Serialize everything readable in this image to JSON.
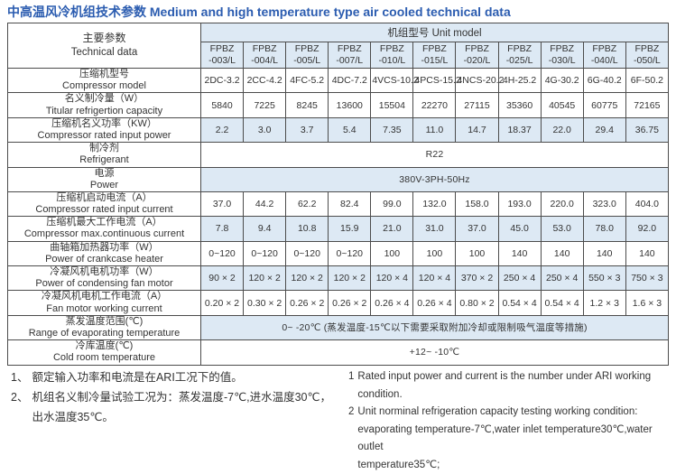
{
  "page_title": "中高温风冷机组技术参数 Medium and high temperature type air cooled technical data",
  "colors": {
    "title_blue": "#2b5cb0",
    "row_shade": "#dde9f4",
    "border": "#4c4c4c",
    "text": "#333333"
  },
  "table": {
    "corner": {
      "zh": "主要参数",
      "en": "Technical data"
    },
    "unit_model_label": "机组型号  Unit model",
    "models": [
      {
        "line1": "FPBZ",
        "line2": "-003/L"
      },
      {
        "line1": "FPBZ",
        "line2": "-004/L"
      },
      {
        "line1": "FPBZ",
        "line2": "-005/L"
      },
      {
        "line1": "FPBZ",
        "line2": "-007/L"
      },
      {
        "line1": "FPBZ",
        "line2": "-010/L"
      },
      {
        "line1": "FPBZ",
        "line2": "-015/L"
      },
      {
        "line1": "FPBZ",
        "line2": "-020/L"
      },
      {
        "line1": "FPBZ",
        "line2": "-025/L"
      },
      {
        "line1": "FPBZ",
        "line2": "-030/L"
      },
      {
        "line1": "FPBZ",
        "line2": "-040/L"
      },
      {
        "line1": "FPBZ",
        "line2": "-050/L"
      }
    ],
    "rows": [
      {
        "zh": "压缩机型号",
        "en": "Compressor model",
        "shaded": false,
        "values": [
          "2DC-3.2",
          "2CC-4.2",
          "4FC-5.2",
          "4DC-7.2",
          "4VCS-10.2",
          "4PCS-15.2",
          "4NCS-20.2",
          "4H-25.2",
          "4G-30.2",
          "6G-40.2",
          "6F-50.2"
        ]
      },
      {
        "zh": "名义制冷量（W）",
        "en": "Titular refrigertion capacity",
        "shaded": false,
        "values": [
          "5840",
          "7225",
          "8245",
          "13600",
          "15504",
          "22270",
          "27115",
          "35360",
          "40545",
          "60775",
          "72165"
        ]
      },
      {
        "zh": "压缩机名义功率（KW）",
        "en": "Compressor rated input power",
        "shaded": true,
        "values": [
          "2.2",
          "3.0",
          "3.7",
          "5.4",
          "7.35",
          "11.0",
          "14.7",
          "18.37",
          "22.0",
          "29.4",
          "36.75"
        ]
      },
      {
        "zh": "制冷剂",
        "en": "Refrigerant",
        "shaded": false,
        "span_value": "R22"
      },
      {
        "zh": "电源",
        "en": "Power",
        "shaded": true,
        "span_value": "380V-3PH-50Hz"
      },
      {
        "zh": "压缩机启动电流（A）",
        "en": "Compressor rated input current",
        "shaded": false,
        "values": [
          "37.0",
          "44.2",
          "62.2",
          "82.4",
          "99.0",
          "132.0",
          "158.0",
          "193.0",
          "220.0",
          "323.0",
          "404.0"
        ]
      },
      {
        "zh": "压缩机最大工作电流（A）",
        "en": "Compressor max.continuous current",
        "shaded": true,
        "values": [
          "7.8",
          "9.4",
          "10.8",
          "15.9",
          "21.0",
          "31.0",
          "37.0",
          "45.0",
          "53.0",
          "78.0",
          "92.0"
        ]
      },
      {
        "zh": "曲轴箱加热器功率（W）",
        "en": "Power of crankcase heater",
        "shaded": false,
        "values": [
          "0~120",
          "0~120",
          "0~120",
          "0~120",
          "100",
          "100",
          "100",
          "140",
          "140",
          "140",
          "140"
        ]
      },
      {
        "zh": "冷凝风机电机功率（W）",
        "en": "Power of condensing fan motor",
        "shaded": true,
        "values": [
          "90 × 2",
          "120 × 2",
          "120 × 2",
          "120 × 2",
          "120 × 4",
          "120 × 4",
          "370 × 2",
          "250 × 4",
          "250 × 4",
          "550 × 3",
          "750 × 3"
        ]
      },
      {
        "zh": "冷凝风机电机工作电流（A）",
        "en": "Fan motor working current",
        "shaded": false,
        "values": [
          "0.20 × 2",
          "0.30 × 2",
          "0.26 × 2",
          "0.26 × 2",
          "0.26 × 4",
          "0.26 × 4",
          "0.80 × 2",
          "0.54 × 4",
          "0.54 × 4",
          "1.2 × 3",
          "1.6 × 3"
        ]
      },
      {
        "zh": "蒸发温度范围(℃)",
        "en": "Range of evaporating temperature",
        "shaded": true,
        "span_value": "0~ -20℃ (蒸发温度-15℃以下需要采取附加冷却或限制吸气温度等措施)"
      },
      {
        "zh": "冷库温度(℃)",
        "en": "Cold room temperature",
        "shaded": false,
        "span_value": "+12~ -10℃"
      }
    ]
  },
  "notes_zh": [
    {
      "num": "1、",
      "lines": [
        "额定输入功率和电流是在ARI工况下的值。"
      ]
    },
    {
      "num": "2、",
      "lines": [
        "机组名义制冷量试验工况为：蒸发温度-7℃,进水温度30℃，",
        "出水温度35℃。"
      ]
    }
  ],
  "notes_en": [
    {
      "num": "1",
      "lines": [
        "Rated input power and current is the number under ARI working condition."
      ]
    },
    {
      "num": "2",
      "lines": [
        "Unit norminal refrigeration capacity testing working condition:",
        "evaporating temperature-7℃,water inlet temperature30℃,water outlet",
        "temperature35℃;"
      ]
    }
  ]
}
